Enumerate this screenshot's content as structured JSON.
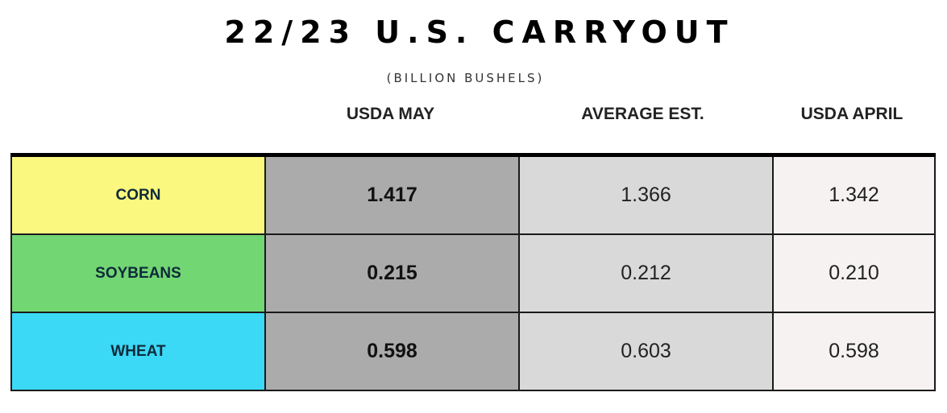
{
  "title": "22/23 U.S. CARRYOUT",
  "subtitle": "(BILLION BUSHELS)",
  "columns": [
    "USDA MAY",
    "AVERAGE EST.",
    "USDA APRIL"
  ],
  "rows": [
    {
      "label": "CORN",
      "color": "#FBF87F",
      "values": [
        "1.417",
        "1.366",
        "1.342"
      ]
    },
    {
      "label": "SOYBEANS",
      "color": "#72D673",
      "values": [
        "0.215",
        "0.212",
        "0.210"
      ]
    },
    {
      "label": "WHEAT",
      "color": "#3BD9F6",
      "values": [
        "0.598",
        "0.603",
        "0.598"
      ]
    }
  ],
  "chart_data": {
    "type": "table",
    "title": "22/23 U.S. CARRYOUT",
    "subtitle": "(BILLION BUSHELS)",
    "columns": [
      "USDA MAY",
      "AVERAGE EST.",
      "USDA APRIL"
    ],
    "rows": [
      "CORN",
      "SOYBEANS",
      "WHEAT"
    ],
    "values": [
      [
        1.417,
        1.366,
        1.342
      ],
      [
        0.215,
        0.212,
        0.21
      ],
      [
        0.598,
        0.603,
        0.598
      ]
    ]
  }
}
